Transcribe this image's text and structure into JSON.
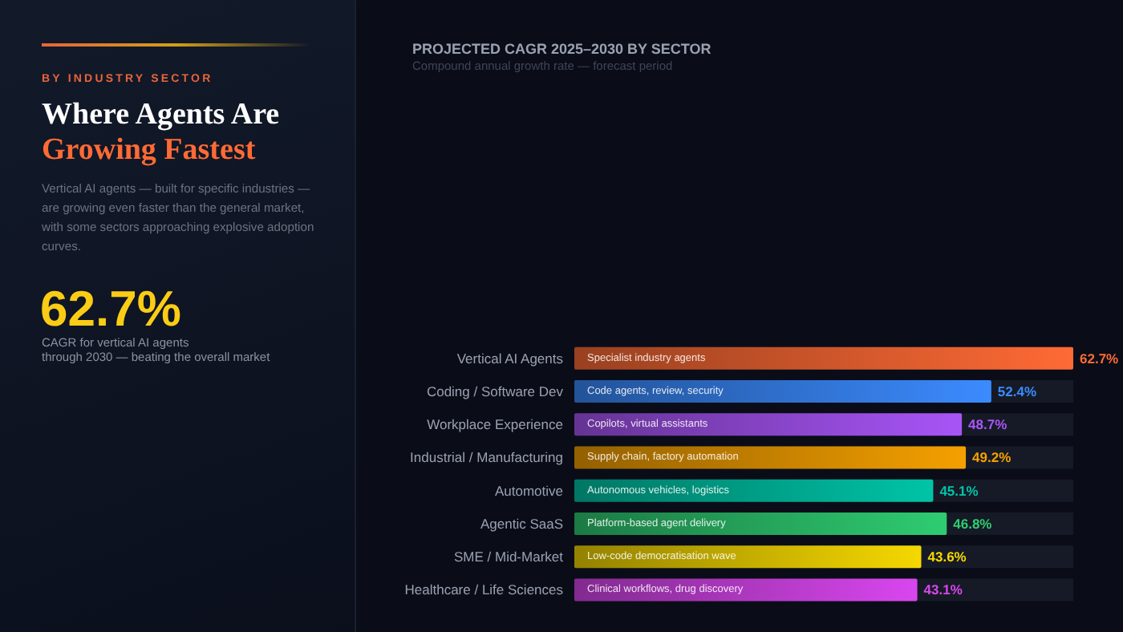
{
  "chart_data": [
    {
      "type": "other",
      "subtitle": "BY INDUSTRY SECTOR",
      "title": "Where Agents Are\nGrowing Fastest",
      "annotations": [
        "Vertical AI agents — built for specific industries — are growing even faster than the general market, with some sectors approaching explosive adoption curves.",
        "62.7%",
        "CAGR for vertical AI agents\nthrough 2030 — beating the overall market"
      ]
    },
    {
      "type": "bar",
      "orientation": "horizontal",
      "title": "PROJECTED CAGR 2025–2030 BY SECTOR",
      "subtitle": "Compound annual growth rate — forecast period",
      "categories": [
        "Vertical AI Agents",
        "Coding / Software Dev",
        "Workplace Experience",
        "Industrial / Manufacturing",
        "Automotive",
        "Agentic SaaS",
        "SME / Mid-Market",
        "Healthcare / Life Sciences"
      ],
      "values": [
        62.7,
        52.4,
        48.7,
        49.2,
        45.1,
        46.8,
        43.6,
        43.1
      ],
      "colors": [
        "#ff6a35",
        "#3b8bff",
        "#a855f7",
        "#f5a000",
        "#00c4a7",
        "#2ecc71",
        "#f5d800",
        "#d946ef"
      ],
      "value_labels": [
        "62.7%",
        "52.4%",
        "48.7%",
        "49.2%",
        "45.1%",
        "46.8%",
        "43.6%",
        "43.1%"
      ],
      "annotations": [
        {
          "text": "Specialist industry agents",
          "y": "Vertical AI Agents"
        },
        {
          "text": "Code agents, review, security",
          "y": "Coding / Software Dev"
        },
        {
          "text": "Copilots, virtual assistants",
          "y": "Workplace Experience"
        },
        {
          "text": "Supply chain, factory automation",
          "y": "Industrial / Manufacturing"
        },
        {
          "text": "Autonomous vehicles, logistics",
          "y": "Automotive"
        },
        {
          "text": "Platform-based agent delivery",
          "y": "Agentic SaaS"
        },
        {
          "text": "Low-code democratisation wave",
          "y": "SME / Mid-Market"
        },
        {
          "text": "Clinical workflows, drug discovery",
          "y": "Healthcare / Life Sciences"
        }
      ]
    }
  ]
}
